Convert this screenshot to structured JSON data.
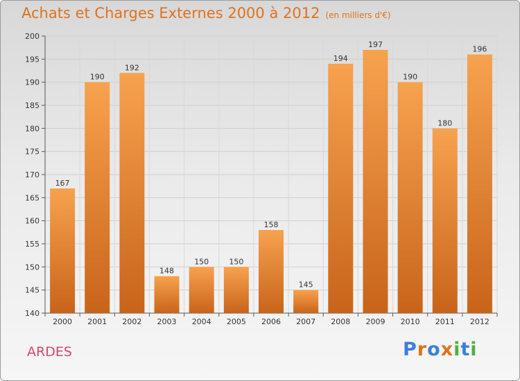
{
  "header": {
    "title": "Achats et Charges Externes 2000 à 2012",
    "unit": "(en milliers d'€)"
  },
  "footer": {
    "place": "ARDES",
    "logo_text": "Proxiti"
  },
  "chart_data": {
    "type": "bar",
    "title": "Achats et Charges Externes 2000 à 2012",
    "subtitle": "(en milliers d'€)",
    "xlabel": "",
    "ylabel": "",
    "categories": [
      "2000",
      "2001",
      "2002",
      "2003",
      "2004",
      "2005",
      "2006",
      "2007",
      "2008",
      "2009",
      "2010",
      "2011",
      "2012"
    ],
    "values": [
      167,
      190,
      192,
      148,
      150,
      150,
      158,
      145,
      194,
      197,
      190,
      180,
      196
    ],
    "ylim": [
      140,
      200
    ],
    "yticks": [
      140,
      145,
      150,
      155,
      160,
      165,
      170,
      175,
      180,
      185,
      190,
      195,
      200
    ],
    "grid": true,
    "data_labels": true,
    "bar_color_top": "#f7a24f",
    "bar_color_bottom": "#c8641a"
  },
  "colors": {
    "title": "#e0711c",
    "place": "#d2476e",
    "logo": [
      "#3d7fd6",
      "#e0711c",
      "#3d7fd6",
      "#e0711c",
      "#4fb043",
      "#3d7fd6",
      "#4fb043"
    ]
  }
}
